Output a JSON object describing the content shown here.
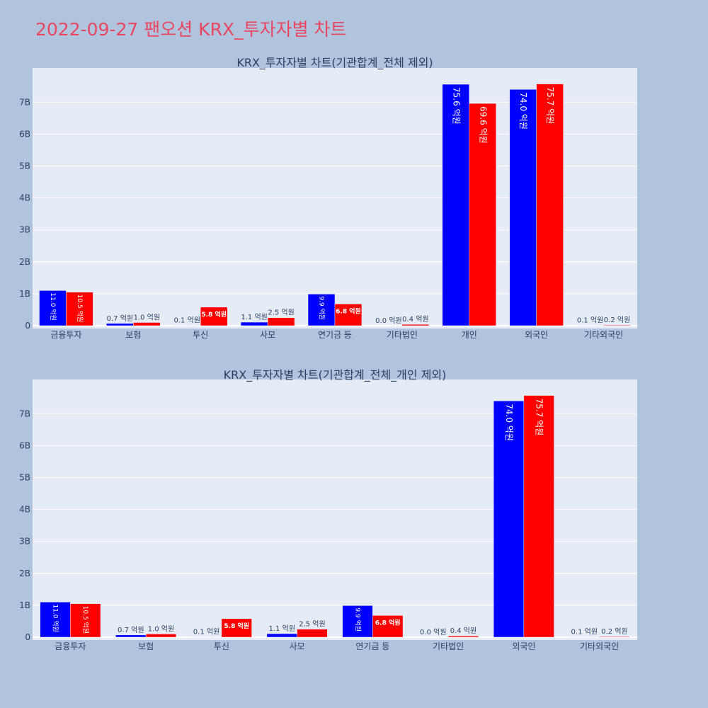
{
  "page": {
    "title": "2022-09-27 팬오션 KRX_투자자별 차트"
  },
  "colors": {
    "background": "#b0c4de",
    "plot_bg": "#e5ecf6",
    "buy": "#0000ff",
    "sell": "#ff0000",
    "title": "#e8475f",
    "text": "#2a3f5f"
  },
  "chart_data": [
    {
      "type": "bar",
      "title": "KRX_투자자별 차트(기관합계_전체 제외)",
      "categories": [
        "금융투자",
        "보험",
        "투신",
        "사모",
        "연기금 등",
        "기타법인",
        "개인",
        "외국인",
        "기타외국인"
      ],
      "series": [
        {
          "color": "#0000ff",
          "values": [
            1100000000.0,
            70000000.0,
            10000000.0,
            110000000.0,
            990000000.0,
            0.0,
            7560000000.0,
            7400000000.0,
            10000000.0
          ],
          "labels": [
            "11.0 억원",
            "0.7 억원",
            "0.1 억원",
            "1.1 억원",
            "9.9 억원",
            "0.0 억원",
            "75.6 억원",
            "74.0 억원",
            "0.1 억원"
          ]
        },
        {
          "color": "#ff0000",
          "values": [
            1050000000.0,
            100000000.0,
            580000000.0,
            250000000.0,
            680000000.0,
            40000000.0,
            6960000000.0,
            7570000000.0,
            20000000.0
          ],
          "labels": [
            "10.5 억원",
            "1.0 억원",
            "5.8 억원",
            "2.5 억원",
            "6.8 억원",
            "0.4 억원",
            "69.6 억원",
            "75.7 억원",
            "0.2 억원"
          ]
        }
      ],
      "yticks": [
        "0",
        "1B",
        "2B",
        "3B",
        "4B",
        "5B",
        "6B",
        "7B"
      ],
      "ylim": [
        0,
        8000000000.0
      ],
      "grid": true
    },
    {
      "type": "bar",
      "title": "KRX_투자자별 차트(기관합계_전체_개인 제외)",
      "categories": [
        "금융투자",
        "보험",
        "투신",
        "사모",
        "연기금 등",
        "기타법인",
        "외국인",
        "기타외국인"
      ],
      "series": [
        {
          "color": "#0000ff",
          "values": [
            1100000000.0,
            70000000.0,
            10000000.0,
            110000000.0,
            990000000.0,
            0.0,
            7400000000.0,
            10000000.0
          ],
          "labels": [
            "11.0 억원",
            "0.7 억원",
            "0.1 억원",
            "1.1 억원",
            "9.9 억원",
            "0.0 억원",
            "74.0 억원",
            "0.1 억원"
          ]
        },
        {
          "color": "#ff0000",
          "values": [
            1050000000.0,
            100000000.0,
            580000000.0,
            250000000.0,
            680000000.0,
            40000000.0,
            7570000000.0,
            20000000.0
          ],
          "labels": [
            "10.5 억원",
            "1.0 억원",
            "5.8 억원",
            "2.5 억원",
            "6.8 억원",
            "0.4 억원",
            "75.7 억원",
            "0.2 억원"
          ]
        }
      ],
      "yticks": [
        "0",
        "1B",
        "2B",
        "3B",
        "4B",
        "5B",
        "6B",
        "7B"
      ],
      "ylim": [
        0,
        8000000000.0
      ],
      "grid": true
    }
  ]
}
